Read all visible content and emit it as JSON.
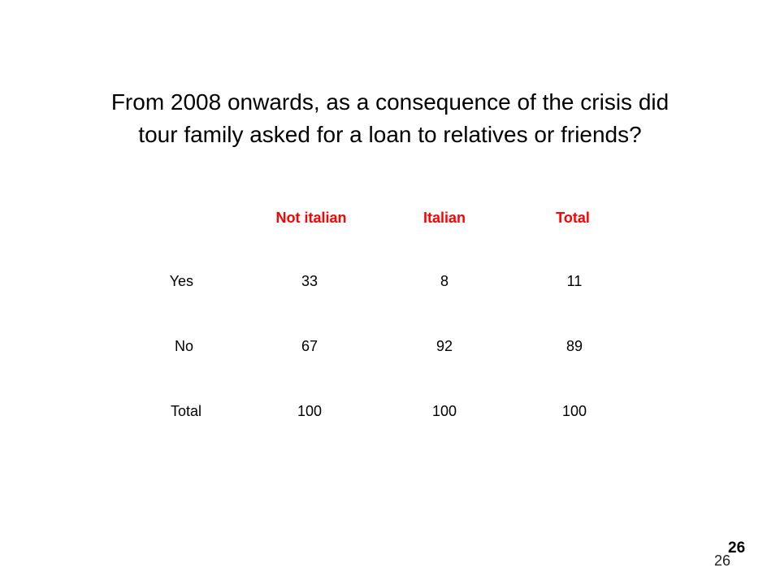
{
  "slide": {
    "title_lines": [
      "From 2008 onwards, as a consequence of the crisis did",
      "tour family asked for a loan to relatives or friends?"
    ],
    "page_number_bold": "26",
    "page_number": "26"
  },
  "table": {
    "headers": [
      "Not italian",
      "Italian",
      "Total"
    ],
    "rows": [
      {
        "label": "Yes",
        "values": [
          "33",
          "8",
          "11"
        ]
      },
      {
        "label": "No",
        "values": [
          "67",
          "92",
          "89"
        ]
      },
      {
        "label": "Total",
        "values": [
          "100",
          "100",
          "100"
        ]
      }
    ]
  },
  "colors": {
    "header_text": "#ff0000",
    "body_text": "#000000",
    "background": "#ffffff"
  }
}
